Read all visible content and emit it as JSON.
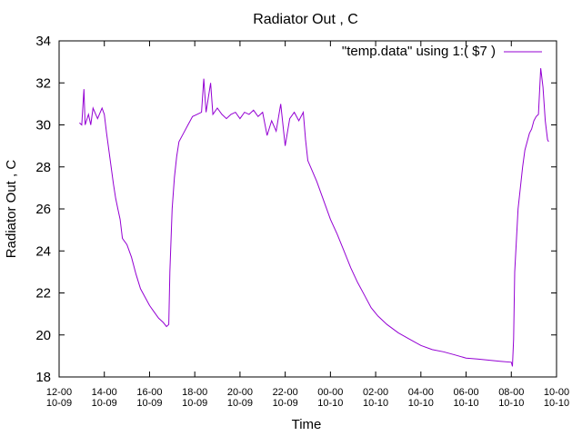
{
  "chart_data": {
    "type": "line",
    "title": "Radiator Out , C",
    "xlabel": "Time",
    "ylabel": "Radiator Out , C",
    "legend_position": "top-right",
    "ylim": [
      18,
      34
    ],
    "yticks": [
      18,
      20,
      22,
      24,
      26,
      28,
      30,
      32,
      34
    ],
    "xlim_hours": [
      12,
      34
    ],
    "xticks": [
      {
        "hour": 12,
        "line1": "12-00",
        "line2": "10-09"
      },
      {
        "hour": 14,
        "line1": "14-00",
        "line2": "10-09"
      },
      {
        "hour": 16,
        "line1": "16-00",
        "line2": "10-09"
      },
      {
        "hour": 18,
        "line1": "18-00",
        "line2": "10-09"
      },
      {
        "hour": 20,
        "line1": "20-00",
        "line2": "10-09"
      },
      {
        "hour": 22,
        "line1": "22-00",
        "line2": "10-09"
      },
      {
        "hour": 24,
        "line1": "00-00",
        "line2": "10-10"
      },
      {
        "hour": 26,
        "line1": "02-00",
        "line2": "10-10"
      },
      {
        "hour": 28,
        "line1": "04-00",
        "line2": "10-10"
      },
      {
        "hour": 30,
        "line1": "06-00",
        "line2": "10-10"
      },
      {
        "hour": 32,
        "line1": "08-00",
        "line2": "10-10"
      },
      {
        "hour": 34,
        "line1": "10-00",
        "line2": "10-10"
      }
    ],
    "series": [
      {
        "name": "\"temp.data\" using 1:( $7 )",
        "color": "#9400d3",
        "points": [
          [
            12.9,
            30.1
          ],
          [
            13.0,
            30.0
          ],
          [
            13.1,
            31.7
          ],
          [
            13.15,
            30.0
          ],
          [
            13.3,
            30.5
          ],
          [
            13.4,
            30.0
          ],
          [
            13.5,
            30.8
          ],
          [
            13.7,
            30.3
          ],
          [
            13.9,
            30.8
          ],
          [
            14.0,
            30.5
          ],
          [
            14.1,
            29.6
          ],
          [
            14.2,
            28.8
          ],
          [
            14.3,
            28.0
          ],
          [
            14.4,
            27.2
          ],
          [
            14.5,
            26.5
          ],
          [
            14.6,
            26.0
          ],
          [
            14.7,
            25.5
          ],
          [
            14.8,
            24.6
          ],
          [
            15.0,
            24.3
          ],
          [
            15.2,
            23.7
          ],
          [
            15.4,
            22.9
          ],
          [
            15.6,
            22.2
          ],
          [
            15.8,
            21.8
          ],
          [
            16.0,
            21.4
          ],
          [
            16.2,
            21.1
          ],
          [
            16.4,
            20.8
          ],
          [
            16.6,
            20.6
          ],
          [
            16.75,
            20.4
          ],
          [
            16.85,
            20.5
          ],
          [
            16.9,
            23.0
          ],
          [
            17.0,
            26.0
          ],
          [
            17.1,
            27.5
          ],
          [
            17.2,
            28.5
          ],
          [
            17.3,
            29.2
          ],
          [
            17.5,
            29.6
          ],
          [
            17.7,
            30.0
          ],
          [
            17.9,
            30.4
          ],
          [
            18.1,
            30.5
          ],
          [
            18.3,
            30.6
          ],
          [
            18.4,
            32.2
          ],
          [
            18.5,
            30.6
          ],
          [
            18.7,
            32.0
          ],
          [
            18.8,
            30.5
          ],
          [
            19.0,
            30.8
          ],
          [
            19.2,
            30.5
          ],
          [
            19.4,
            30.3
          ],
          [
            19.6,
            30.5
          ],
          [
            19.8,
            30.6
          ],
          [
            20.0,
            30.3
          ],
          [
            20.2,
            30.6
          ],
          [
            20.4,
            30.5
          ],
          [
            20.6,
            30.7
          ],
          [
            20.8,
            30.4
          ],
          [
            21.0,
            30.6
          ],
          [
            21.2,
            29.5
          ],
          [
            21.4,
            30.2
          ],
          [
            21.6,
            29.7
          ],
          [
            21.8,
            31.0
          ],
          [
            22.0,
            29.0
          ],
          [
            22.2,
            30.3
          ],
          [
            22.4,
            30.6
          ],
          [
            22.6,
            30.2
          ],
          [
            22.8,
            30.6
          ],
          [
            22.9,
            29.3
          ],
          [
            23.0,
            28.3
          ],
          [
            23.2,
            27.8
          ],
          [
            23.4,
            27.3
          ],
          [
            23.6,
            26.7
          ],
          [
            23.8,
            26.1
          ],
          [
            24.0,
            25.5
          ],
          [
            24.3,
            24.8
          ],
          [
            24.6,
            24.0
          ],
          [
            24.9,
            23.2
          ],
          [
            25.2,
            22.5
          ],
          [
            25.5,
            21.9
          ],
          [
            25.8,
            21.3
          ],
          [
            26.1,
            20.9
          ],
          [
            26.5,
            20.5
          ],
          [
            27.0,
            20.1
          ],
          [
            27.5,
            19.8
          ],
          [
            28.0,
            19.5
          ],
          [
            28.5,
            19.3
          ],
          [
            29.0,
            19.2
          ],
          [
            29.5,
            19.05
          ],
          [
            30.0,
            18.9
          ],
          [
            30.5,
            18.85
          ],
          [
            31.0,
            18.8
          ],
          [
            31.5,
            18.75
          ],
          [
            32.0,
            18.7
          ],
          [
            32.05,
            18.5
          ],
          [
            32.1,
            19.8
          ],
          [
            32.15,
            23.0
          ],
          [
            32.3,
            26.0
          ],
          [
            32.5,
            28.0
          ],
          [
            32.6,
            28.8
          ],
          [
            32.7,
            29.2
          ],
          [
            32.8,
            29.6
          ],
          [
            32.9,
            29.8
          ],
          [
            33.0,
            30.2
          ],
          [
            33.1,
            30.4
          ],
          [
            33.2,
            30.5
          ],
          [
            33.3,
            32.7
          ],
          [
            33.4,
            31.8
          ],
          [
            33.5,
            30.2
          ],
          [
            33.6,
            29.3
          ],
          [
            33.65,
            29.2
          ]
        ]
      }
    ]
  }
}
